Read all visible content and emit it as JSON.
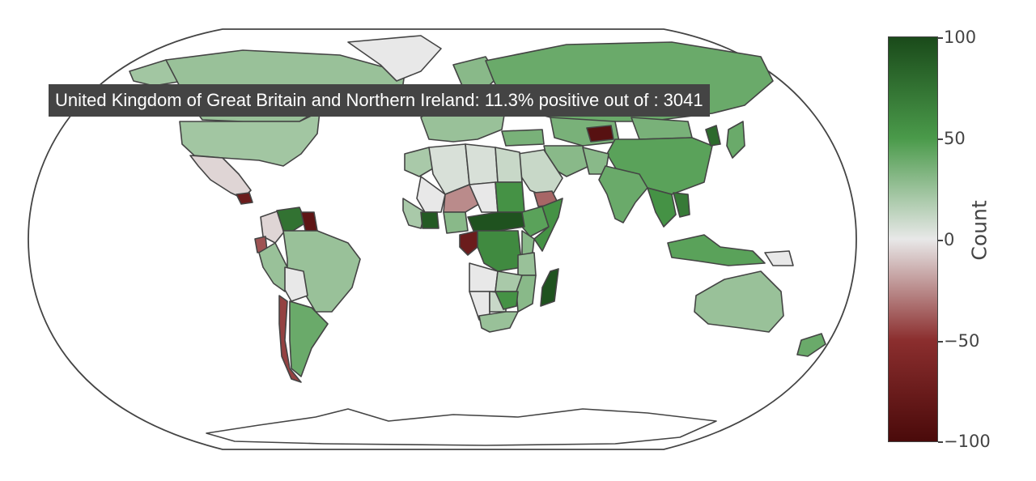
{
  "map": {
    "projection": "robinson",
    "countries": [
      {
        "id": "canada",
        "value": 25
      },
      {
        "id": "usa",
        "value": 22
      },
      {
        "id": "alaska",
        "value": 22
      },
      {
        "id": "greenland",
        "value": 0
      },
      {
        "id": "mexico",
        "value": -5
      },
      {
        "id": "guatemala",
        "value": -75
      },
      {
        "id": "colombia",
        "value": -5
      },
      {
        "id": "venezuela",
        "value": 75
      },
      {
        "id": "guyana",
        "value": -85
      },
      {
        "id": "ecuador",
        "value": -40
      },
      {
        "id": "peru",
        "value": 25
      },
      {
        "id": "brazil",
        "value": 25
      },
      {
        "id": "bolivia",
        "value": 0
      },
      {
        "id": "chile",
        "value": -45
      },
      {
        "id": "argentina",
        "value": 40
      },
      {
        "id": "scandinavia",
        "value": 30
      },
      {
        "id": "europe",
        "value": 25
      },
      {
        "id": "russia",
        "value": 40
      },
      {
        "id": "kazakhstan",
        "value": 35
      },
      {
        "id": "kyrgyzstan",
        "value": -90
      },
      {
        "id": "china",
        "value": 45
      },
      {
        "id": "mongolia",
        "value": 35
      },
      {
        "id": "korea",
        "value": 80
      },
      {
        "id": "japan",
        "value": 40
      },
      {
        "id": "india",
        "value": 40
      },
      {
        "id": "pakistan",
        "value": 30
      },
      {
        "id": "iran",
        "value": 30
      },
      {
        "id": "arabia",
        "value": 10
      },
      {
        "id": "yemen",
        "value": -35
      },
      {
        "id": "turkey",
        "value": 35
      },
      {
        "id": "se-asia",
        "value": 55
      },
      {
        "id": "vietnam",
        "value": 70
      },
      {
        "id": "indonesia",
        "value": 45
      },
      {
        "id": "png",
        "value": 0
      },
      {
        "id": "australia",
        "value": 25
      },
      {
        "id": "newzealand",
        "value": 40
      },
      {
        "id": "morocco",
        "value": 20
      },
      {
        "id": "algeria",
        "value": 5
      },
      {
        "id": "libya",
        "value": 5
      },
      {
        "id": "egypt",
        "value": 10
      },
      {
        "id": "mali",
        "value": 0
      },
      {
        "id": "niger",
        "value": -25
      },
      {
        "id": "chad",
        "value": 0
      },
      {
        "id": "sudan",
        "value": 55
      },
      {
        "id": "ethiopia",
        "value": 45
      },
      {
        "id": "somalia",
        "value": 55
      },
      {
        "id": "west-africa",
        "value": 20
      },
      {
        "id": "ivory-coast",
        "value": 90
      },
      {
        "id": "nigeria",
        "value": 30
      },
      {
        "id": "car",
        "value": 95
      },
      {
        "id": "gabon",
        "value": -75
      },
      {
        "id": "drc",
        "value": 60
      },
      {
        "id": "kenya",
        "value": 30
      },
      {
        "id": "tanzania",
        "value": 25
      },
      {
        "id": "angola",
        "value": 0
      },
      {
        "id": "zambia",
        "value": 20
      },
      {
        "id": "mozambique",
        "value": 30
      },
      {
        "id": "namibia",
        "value": 0
      },
      {
        "id": "botswana",
        "value": 10
      },
      {
        "id": "zimbabwe",
        "value": 55
      },
      {
        "id": "south-africa",
        "value": 25
      },
      {
        "id": "madagascar",
        "value": 95
      },
      {
        "id": "uk",
        "value": 11
      },
      {
        "id": "antarctica",
        "value": null
      }
    ]
  },
  "tooltip": {
    "country": "United Kingdom of Great Britain and Northern Ireland",
    "text": "United Kingdom of Great Britain and Northern Ireland: 11.3% positive out of : 3041",
    "percent_positive": 11.3,
    "total": 3041
  },
  "colorbar": {
    "title": "Count",
    "min": -100,
    "max": 100,
    "ticks": [
      {
        "value": 100,
        "label": "100"
      },
      {
        "value": 50,
        "label": "50"
      },
      {
        "value": 0,
        "label": "0"
      },
      {
        "value": -50,
        "label": "−50"
      },
      {
        "value": -100,
        "label": "−100"
      }
    ],
    "colorscale": [
      "#4a0a0a",
      "#8b2e2e",
      "#e8e8e8",
      "#4a9a4a",
      "#1a4a1a"
    ]
  }
}
